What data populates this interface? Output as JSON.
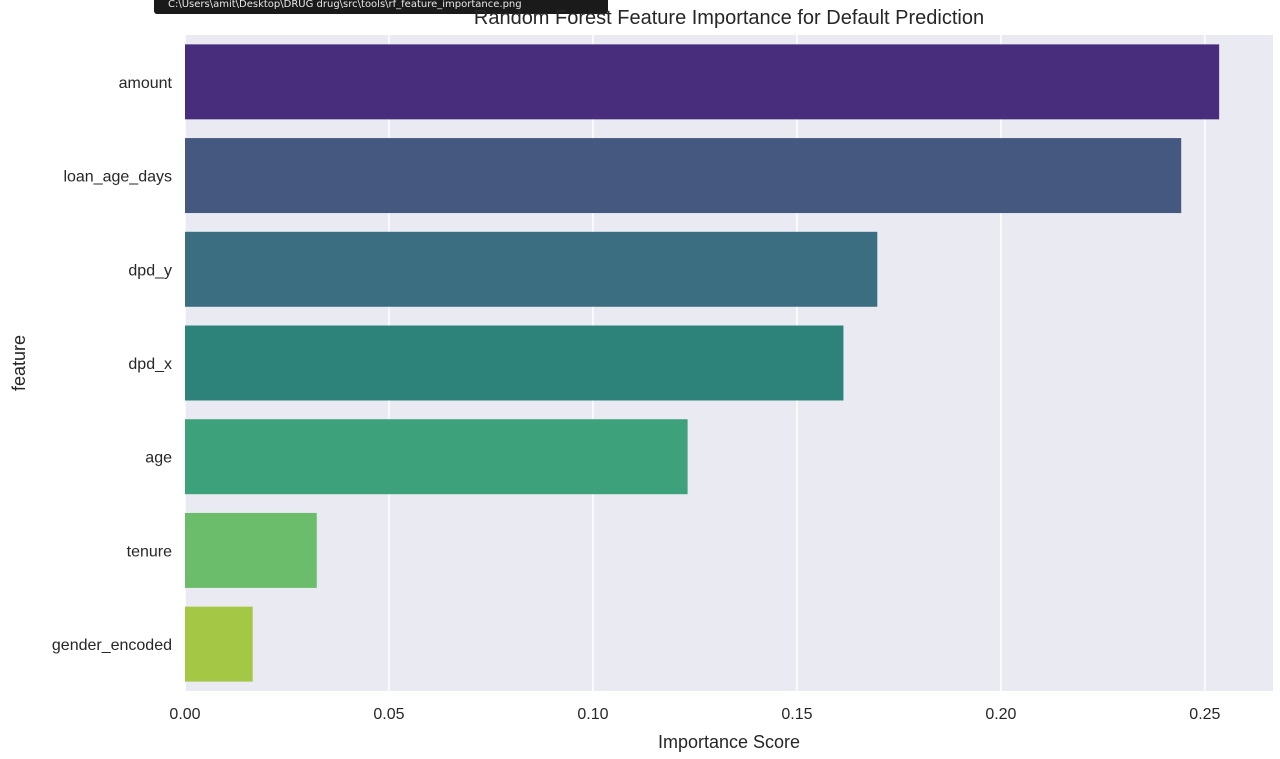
{
  "tooltip": {
    "text": "C:\\Users\\amit\\Desktop\\DRUG drug\\src\\tools\\rf_feature_importance.png"
  },
  "chart_data": {
    "type": "bar",
    "orientation": "horizontal",
    "title": "Random Forest Feature Importance for Default Prediction",
    "xlabel": "Importance Score",
    "ylabel": "feature",
    "categories": [
      "amount",
      "loan_age_days",
      "dpd_y",
      "dpd_x",
      "age",
      "tenure",
      "gender_encoded"
    ],
    "values": [
      0.2535,
      0.2442,
      0.1697,
      0.1614,
      0.1232,
      0.0323,
      0.0166
    ],
    "xlim": [
      0,
      0.2667
    ],
    "xticks": [
      0,
      0.05,
      0.1,
      0.15,
      0.2,
      0.25
    ],
    "xtick_labels": [
      "0.00",
      "0.05",
      "0.10",
      "0.15",
      "0.20",
      "0.25"
    ],
    "grid": true,
    "legend": "none",
    "colors": [
      "#472d7b",
      "#45587f",
      "#3a6e80",
      "#2d8279",
      "#3da17b",
      "#6bbc6b",
      "#a4c846"
    ],
    "background": "#eaeaf2"
  }
}
